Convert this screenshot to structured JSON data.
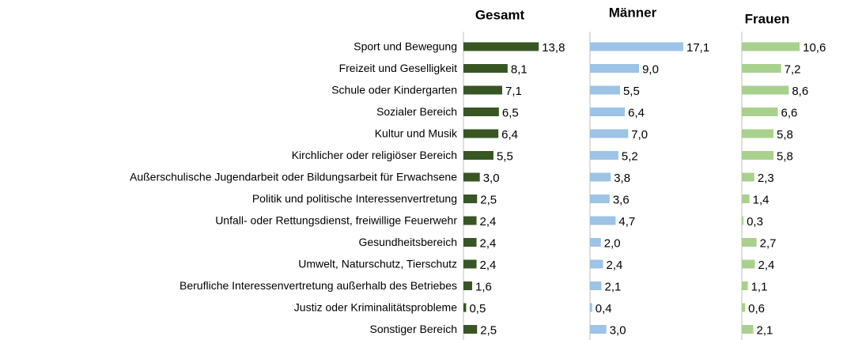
{
  "chart_data": {
    "type": "bar",
    "orientation": "horizontal",
    "categories": [
      "Sport und Bewegung",
      "Freizeit und Geselligkeit",
      "Schule oder Kindergarten",
      "Sozialer Bereich",
      "Kultur und Musik",
      "Kirchlicher oder religiöser Bereich",
      "Außerschulische Jugendarbeit oder Bildungsarbeit für Erwachsene",
      "Politik und politische Interessenvertretung",
      "Unfall- oder Rettungsdienst, freiwillige Feuerwehr",
      "Gesundheitsbereich",
      "Umwelt, Naturschutz, Tierschutz",
      "Berufliche Interessenvertretung außerhalb des Betriebes",
      "Justiz oder Kriminalitätsprobleme",
      "Sonstiger Bereich"
    ],
    "series": [
      {
        "name": "Gesamt",
        "color": "#375623",
        "values": [
          13.8,
          8.1,
          7.1,
          6.5,
          6.4,
          5.5,
          3.0,
          2.5,
          2.4,
          2.4,
          2.4,
          1.6,
          0.5,
          2.5
        ],
        "value_labels": [
          "13,8",
          "8,1",
          "7,1",
          "6,5",
          "6,4",
          "5,5",
          "3,0",
          "2,5",
          "2,4",
          "2,4",
          "2,4",
          "1,6",
          "0,5",
          "2,5"
        ]
      },
      {
        "name": "Männer",
        "color": "#9dc3e6",
        "values": [
          17.1,
          9.0,
          5.5,
          6.4,
          7.0,
          5.2,
          3.8,
          3.6,
          4.7,
          2.0,
          2.4,
          2.1,
          0.4,
          3.0
        ],
        "value_labels": [
          "17,1",
          "9,0",
          "5,5",
          "6,4",
          "7,0",
          "5,2",
          "3,8",
          "3,6",
          "4,7",
          "2,0",
          "2,4",
          "2,1",
          "0,4",
          "3,0"
        ]
      },
      {
        "name": "Frauen",
        "color": "#a9d18e",
        "values": [
          10.6,
          7.2,
          8.6,
          6.6,
          5.8,
          5.8,
          2.3,
          1.4,
          0.3,
          2.7,
          2.4,
          1.1,
          0.6,
          2.1
        ],
        "value_labels": [
          "10,6",
          "7,2",
          "8,6",
          "6,6",
          "5,8",
          "5,8",
          "2,3",
          "1,4",
          "0,3",
          "2,7",
          "2,4",
          "1,1",
          "0,6",
          "2,1"
        ]
      }
    ]
  }
}
